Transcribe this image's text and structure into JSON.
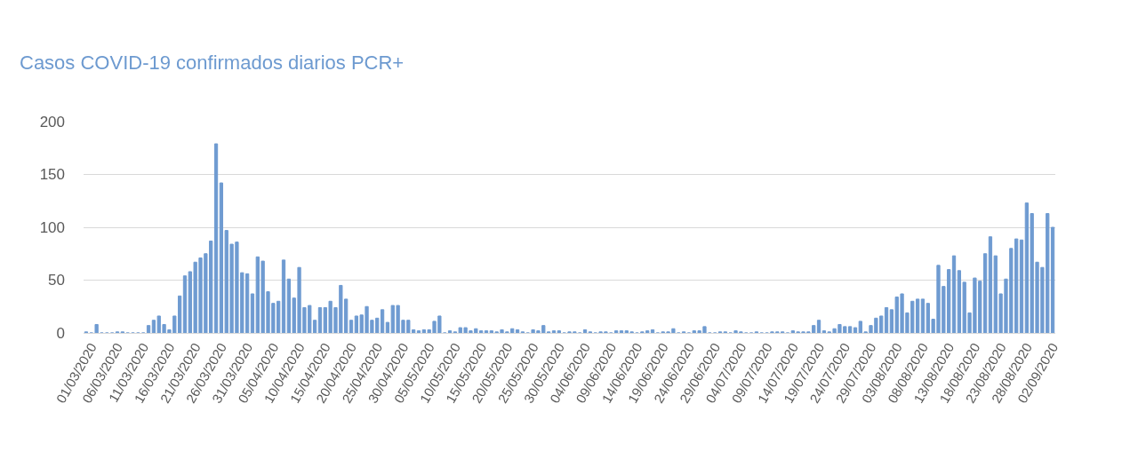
{
  "chart_data": {
    "type": "bar",
    "title": "Casos COVID-19 confirmados diarios PCR+",
    "categories": [
      null,
      "01/03/2020",
      null,
      null,
      null,
      null,
      "06/03/2020",
      null,
      null,
      null,
      null,
      "11/03/2020",
      null,
      null,
      null,
      null,
      "16/03/2020",
      null,
      null,
      null,
      null,
      "21/03/2020",
      null,
      null,
      null,
      null,
      "26/03/2020",
      null,
      null,
      null,
      null,
      "31/03/2020",
      null,
      null,
      null,
      null,
      "05/04/2020",
      null,
      null,
      null,
      null,
      "10/04/2020",
      null,
      null,
      null,
      null,
      "15/04/2020",
      null,
      null,
      null,
      null,
      "20/04/2020",
      null,
      null,
      null,
      null,
      "25/04/2020",
      null,
      null,
      null,
      null,
      "30/04/2020",
      null,
      null,
      null,
      null,
      "05/05/2020",
      null,
      null,
      null,
      null,
      "10/05/2020",
      null,
      null,
      null,
      null,
      "15/05/2020",
      null,
      null,
      null,
      null,
      "20/05/2020",
      null,
      null,
      null,
      null,
      "25/05/2020",
      null,
      null,
      null,
      null,
      "30/05/2020",
      null,
      null,
      null,
      null,
      "04/06/2020",
      null,
      null,
      null,
      null,
      "09/06/2020",
      null,
      null,
      null,
      null,
      "14/06/2020",
      null,
      null,
      null,
      null,
      "19/06/2020",
      null,
      null,
      null,
      null,
      "24/06/2020",
      null,
      null,
      null,
      null,
      "29/06/2020",
      null,
      null,
      null,
      null,
      "04/07/2020",
      null,
      null,
      null,
      null,
      "09/07/2020",
      null,
      null,
      null,
      null,
      "14/07/2020",
      null,
      null,
      null,
      null,
      "19/07/2020",
      null,
      null,
      null,
      null,
      "24/07/2020",
      null,
      null,
      null,
      null,
      "29/07/2020",
      null,
      null,
      null,
      null,
      "03/08/2020",
      null,
      null,
      null,
      null,
      "08/08/2020",
      null,
      null,
      null,
      null,
      "13/08/2020",
      null,
      null,
      null,
      null,
      "18/08/2020",
      null,
      null,
      null,
      null,
      "23/08/2020",
      null,
      null,
      null,
      null,
      "28/08/2020",
      null,
      null,
      null,
      null,
      "02/09/2020"
    ],
    "values": [
      1,
      0,
      8,
      0,
      0,
      0,
      1,
      1,
      0,
      0,
      0,
      0,
      7,
      12,
      16,
      8,
      3,
      16,
      35,
      54,
      58,
      67,
      71,
      75,
      87,
      179,
      142,
      97,
      84,
      86,
      57,
      56,
      37,
      72,
      68,
      39,
      28,
      30,
      69,
      51,
      33,
      62,
      24,
      26,
      12,
      24,
      24,
      30,
      24,
      45,
      32,
      12,
      16,
      17,
      25,
      12,
      14,
      22,
      10,
      26,
      26,
      12,
      12,
      3,
      2,
      3,
      3,
      11,
      16,
      0,
      2,
      1,
      5,
      5,
      2,
      4,
      2,
      2,
      2,
      1,
      3,
      1,
      4,
      3,
      1,
      0,
      3,
      2,
      7,
      1,
      2,
      2,
      0,
      1,
      1,
      0,
      3,
      1,
      0,
      1,
      1,
      0,
      2,
      2,
      2,
      1,
      0,
      1,
      2,
      3,
      0,
      1,
      1,
      4,
      0,
      1,
      0,
      2,
      2,
      6,
      0,
      0,
      1,
      1,
      0,
      2,
      1,
      0,
      0,
      1,
      0,
      0,
      1,
      1,
      1,
      0,
      2,
      1,
      1,
      1,
      7,
      12,
      2,
      1,
      4,
      8,
      6,
      6,
      5,
      11,
      1,
      7,
      14,
      16,
      24,
      22,
      34,
      37,
      19,
      30,
      32,
      32,
      28,
      13,
      64,
      44,
      60,
      73,
      59,
      48,
      19,
      52,
      49,
      75,
      91,
      73,
      37,
      51,
      80,
      89,
      88,
      123,
      113,
      67,
      62,
      113,
      100
    ],
    "color": "#6f9bd1",
    "ylim": [
      0,
      200
    ],
    "yticks": [
      0,
      50,
      100,
      150,
      200
    ],
    "grid": "y"
  }
}
